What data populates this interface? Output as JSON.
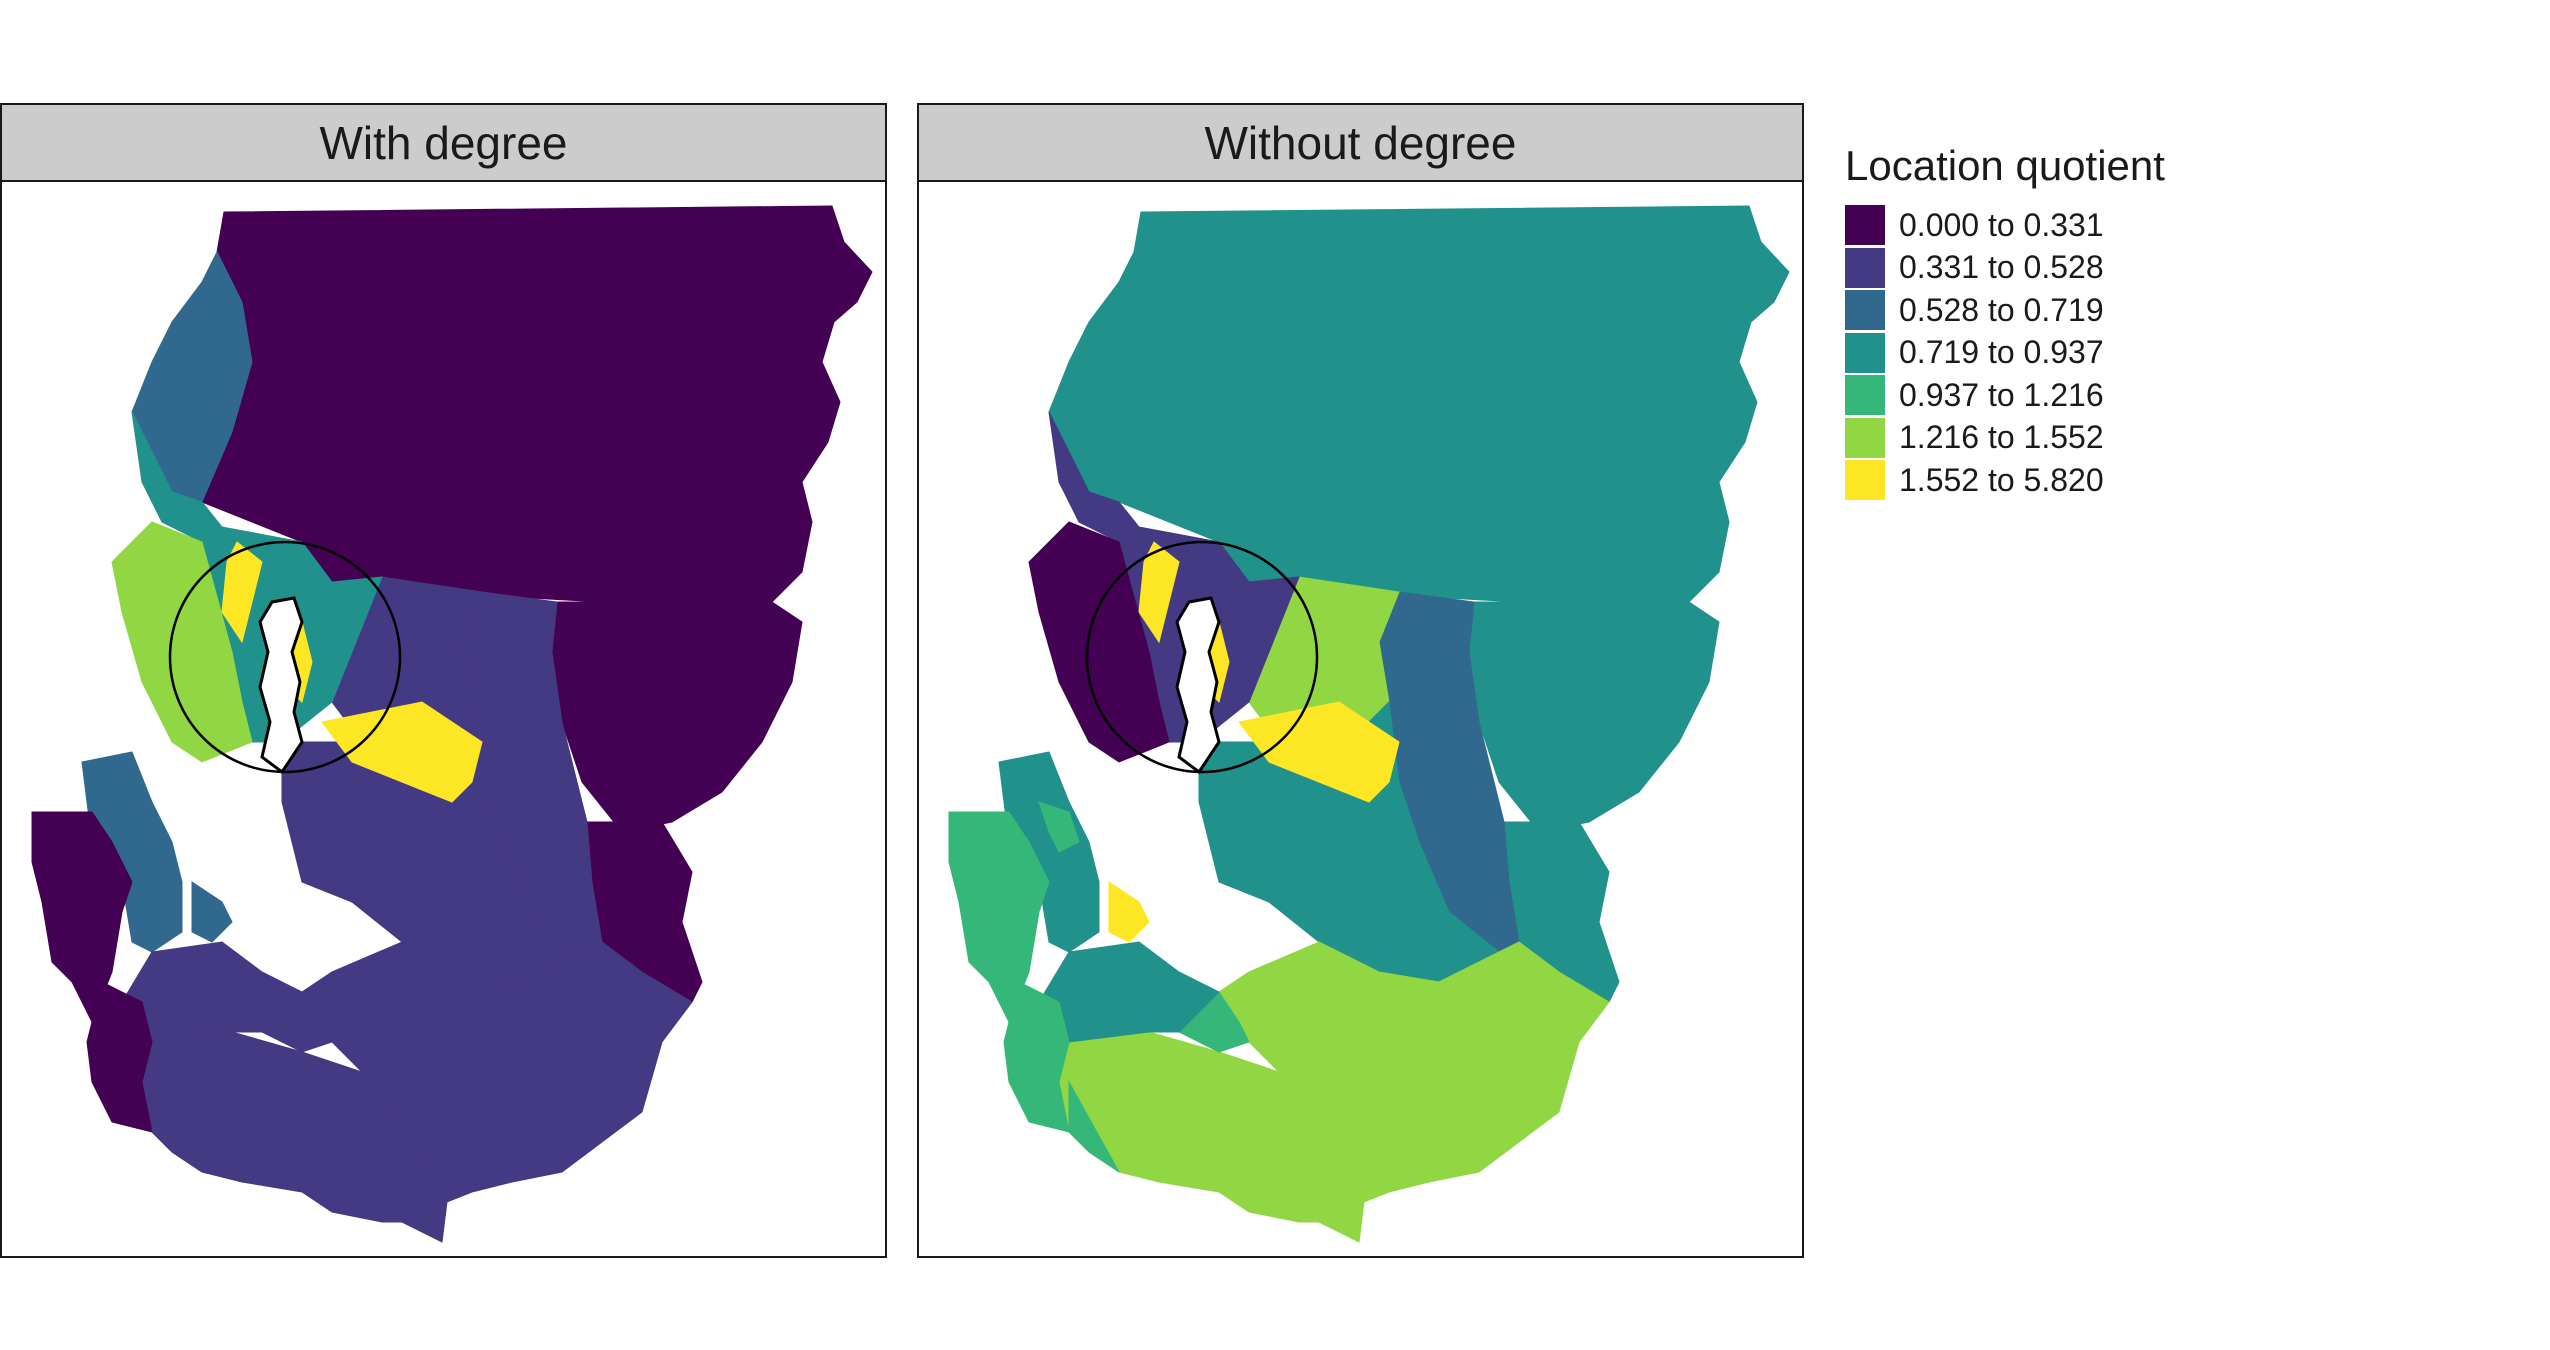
{
  "panels": [
    {
      "title": "With degree",
      "classes": [
        "0",
        "0",
        "0",
        "0",
        "1",
        "1",
        "1",
        "1",
        "1",
        "1",
        "2",
        "3",
        "3",
        "5",
        "6",
        "6",
        "6",
        "2",
        "1",
        "0",
        "0",
        "1",
        "2",
        "2"
      ]
    },
    {
      "title": "Without degree",
      "classes": [
        "3",
        "3",
        "3",
        "3",
        "2",
        "5",
        "3",
        "5",
        "5",
        "4",
        "3",
        "1",
        "1",
        "0",
        "6",
        "6",
        "6",
        "3",
        "3",
        "4",
        "4",
        "4",
        "6",
        "4"
      ]
    }
  ],
  "legend": {
    "title": "Location quotient",
    "items": [
      {
        "label": "0.000 to 0.331",
        "color": "#440154"
      },
      {
        "label": "0.331 to 0.528",
        "color": "#443983"
      },
      {
        "label": "0.528 to 0.719",
        "color": "#31688e"
      },
      {
        "label": "0.719 to 0.937",
        "color": "#21918c"
      },
      {
        "label": "0.937 to 1.216",
        "color": "#35b779"
      },
      {
        "label": "1.216 to 1.552",
        "color": "#90d743"
      },
      {
        "label": "1.552 to 5.820",
        "color": "#fde725"
      }
    ]
  }
}
